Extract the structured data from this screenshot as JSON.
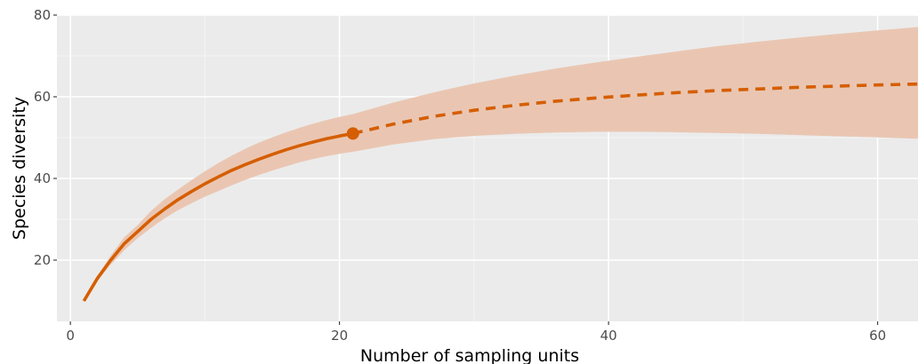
{
  "chart_data": {
    "type": "line",
    "title": "",
    "xlabel": "Number of sampling units",
    "ylabel": "Species diversity",
    "xlim": [
      -1,
      63
    ],
    "ylim": [
      5,
      80
    ],
    "x_ticks": [
      0,
      20,
      40,
      60
    ],
    "y_ticks": [
      20,
      40,
      60,
      80
    ],
    "x_tick_labels": [
      "0",
      "20",
      "40",
      "60"
    ],
    "y_tick_labels": [
      "20",
      "40",
      "60",
      "80"
    ],
    "grid": true,
    "legend": "none",
    "observed_point": {
      "x": 21,
      "y": 51
    },
    "series": [
      {
        "segment": "interpolated",
        "style": "solid",
        "x": [
          1,
          2,
          3,
          4,
          5,
          6,
          7,
          8,
          9,
          10,
          11,
          12,
          13,
          14,
          15,
          16,
          17,
          18,
          19,
          20,
          21
        ],
        "y": [
          10,
          15.5,
          20,
          24,
          27,
          30,
          32.5,
          34.8,
          36.8,
          38.7,
          40.4,
          42,
          43.4,
          44.7,
          45.9,
          47,
          48,
          48.9,
          49.7,
          50.4,
          51
        ],
        "lower": [
          10,
          15,
          19,
          22.5,
          25.5,
          28,
          30.3,
          32.3,
          34,
          35.6,
          37,
          38.4,
          39.7,
          40.9,
          42,
          43,
          44,
          44.8,
          45.5,
          46.1,
          46.6
        ],
        "upper": [
          10,
          16,
          21,
          25.5,
          28.5,
          32,
          34.8,
          37.2,
          39.5,
          41.7,
          43.7,
          45.5,
          47.2,
          48.7,
          50,
          51.2,
          52.3,
          53.3,
          54.2,
          55,
          55.7
        ]
      },
      {
        "segment": "extrapolated",
        "style": "dashed",
        "x": [
          21,
          24,
          27,
          30,
          33,
          36,
          39,
          42,
          45,
          48,
          51,
          54,
          57,
          60,
          63
        ],
        "y": [
          51,
          53.3,
          55.2,
          56.7,
          57.9,
          58.9,
          59.7,
          60.4,
          61,
          61.5,
          61.9,
          62.3,
          62.6,
          62.9,
          63.1
        ],
        "lower": [
          46.6,
          48.4,
          49.7,
          50.5,
          51,
          51.3,
          51.5,
          51.5,
          51.4,
          51.2,
          51,
          50.7,
          50.4,
          50.1,
          49.8
        ],
        "upper": [
          55.7,
          58.5,
          61,
          63.2,
          65.1,
          66.8,
          68.3,
          69.7,
          71,
          72.3,
          73.4,
          74.4,
          75.3,
          76.2,
          77
        ]
      }
    ],
    "colors": {
      "line": "#d55e00",
      "ribbon": "#eac6b2",
      "panel": "#ebebeb",
      "grid_major": "#ffffff",
      "grid_minor": "#f5f5f5"
    }
  }
}
